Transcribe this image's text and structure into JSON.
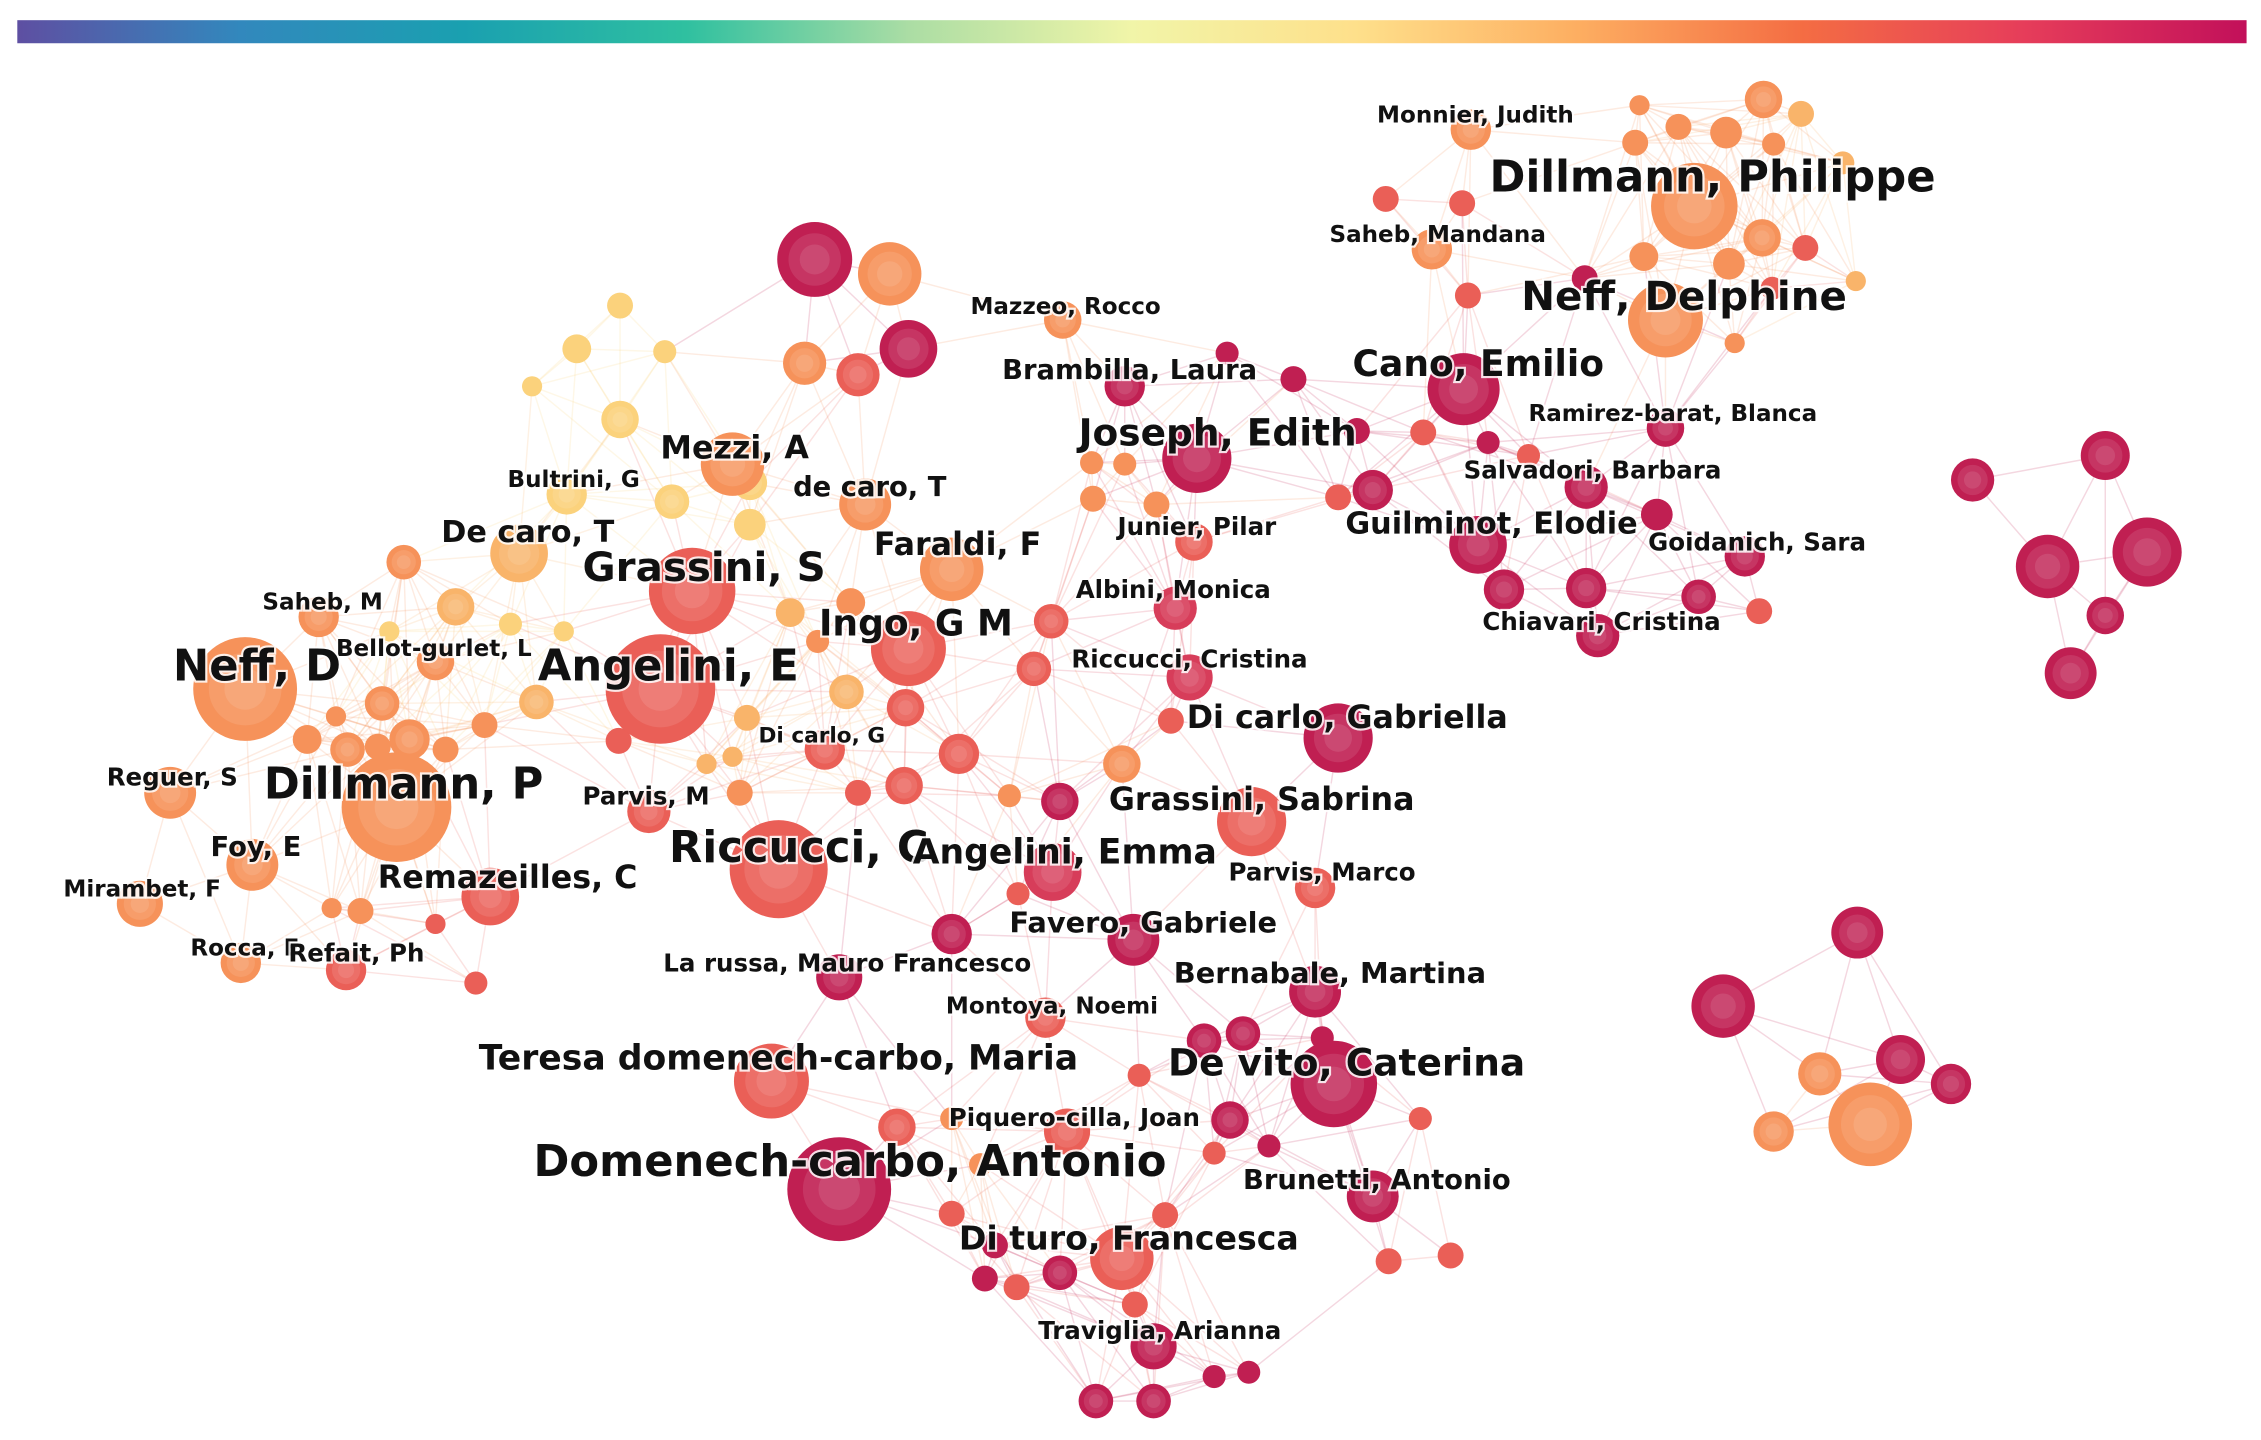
{
  "nodes": [
    "Monnier, Judith",
    "Dillmann, Philippe",
    "Saheb, Mandana",
    "Neff, Delphine",
    "Mazzeo, Rocco",
    "Brambilla, Laura",
    "Cano, Emilio",
    "Ramirez-barat, Blanca",
    "Joseph, Edith",
    "Salvadori, Barbara",
    "Mezzi, A",
    "Bultrini, G",
    "de caro, T",
    "Junier, Pilar",
    "Guilminot, Elodie",
    "Goidanich, Sara",
    "De caro, T",
    "Faraldi, F",
    "Grassini, S",
    "Saheb, M",
    "Albini, Monica",
    "Chiavari, Cristina",
    "Ingo, G M",
    "Bellot-gurlet, L",
    "Neff, D",
    "Angelini, E",
    "Riccucci, Cristina",
    "Di carlo, Gabriella",
    "Di carlo, G",
    "Reguer, S",
    "Dillmann, P",
    "Parvis, M",
    "Grassini, Sabrina",
    "Foy, E",
    "Riccucci, C",
    "Angelini, Emma",
    "Remazeilles, C",
    "Parvis, Marco",
    "Mirambet, F",
    "Favero, Gabriele",
    "Rocca, E",
    "Refait, Ph",
    "La russa, Mauro Francesco",
    "Bernabale, Martina",
    "Montoya, Noemi",
    "Teresa domenech-carbo, Maria",
    "De vito, Caterina",
    "Piquero-cilla, Joan",
    "Domenech-carbo, Antonio",
    "Brunetti, Antonio",
    "Di turo, Francesca",
    "Traviglia, Arianna"
  ]
}
